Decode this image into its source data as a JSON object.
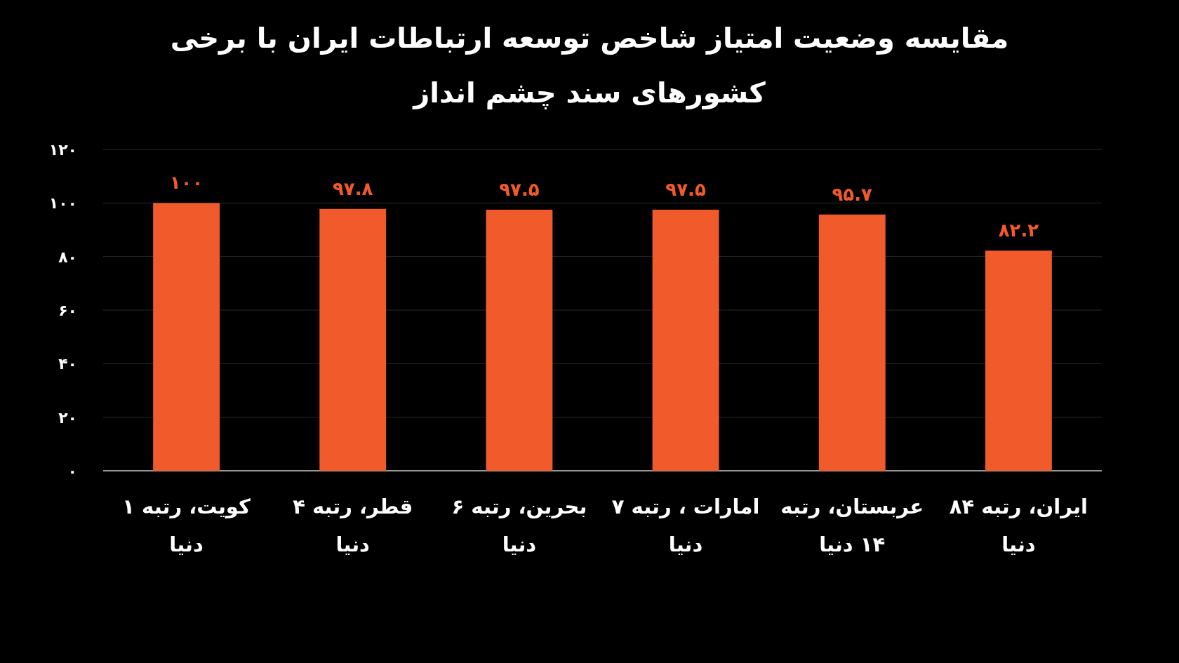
{
  "chart_data": {
    "type": "bar",
    "title": "مقایسه وضعیت امتیاز شاخص توسعه ارتباطات ایران با برخی کشورهای سند چشم انداز",
    "categories": [
      "کویت، رتبه ۱ دنیا",
      "قطر، رتبه ۴ دنیا",
      "بحرین، رتبه ۶ دنیا",
      "امارات ، رتبه ۷ دنیا",
      "عربستان، رتبه ۱۴ دنیا",
      "ایران، رتبه ۸۴ دنیا"
    ],
    "values": [
      100,
      97.8,
      97.5,
      97.5,
      95.7,
      82.2
    ],
    "value_labels": [
      "۱۰۰",
      "۹۷.۸",
      "۹۷.۵",
      "۹۷.۵",
      "۹۵.۷",
      "۸۲.۲"
    ],
    "color": "#f15a2b",
    "ylim": [
      0,
      120
    ],
    "yticks": [
      {
        "value": 0,
        "label": "۰"
      },
      {
        "value": 20,
        "label": "۲۰"
      },
      {
        "value": 40,
        "label": "۴۰"
      },
      {
        "value": 60,
        "label": "۶۰"
      },
      {
        "value": 80,
        "label": "۸۰"
      },
      {
        "value": 100,
        "label": "۱۰۰"
      },
      {
        "value": 120,
        "label": "۱۲۰"
      }
    ],
    "grid": "y"
  }
}
